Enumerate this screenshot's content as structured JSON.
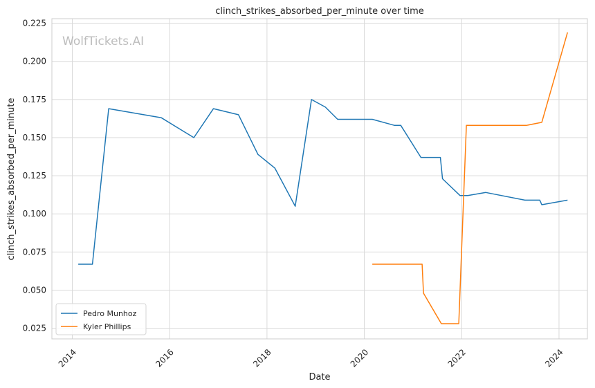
{
  "chart_data": {
    "type": "line",
    "title": "clinch_strikes_absorbed_per_minute over time",
    "xlabel": "Date",
    "ylabel": "clinch_strikes_absorbed_per_minute",
    "watermark": "WolfTickets.AI",
    "xlim": [
      "2013-08-01",
      "2024-08-01"
    ],
    "ylim": [
      0.018,
      0.228
    ],
    "x_ticks": [
      "2014",
      "2016",
      "2018",
      "2020",
      "2022",
      "2024"
    ],
    "y_ticks": [
      "0.025",
      "0.050",
      "0.075",
      "0.100",
      "0.125",
      "0.150",
      "0.175",
      "0.200",
      "0.225"
    ],
    "grid": true,
    "legend_position": "bottom-left",
    "series": [
      {
        "name": "Pedro Munhoz",
        "color": "#1f77b4",
        "points": [
          {
            "x": "2014-02-15",
            "y": 0.067
          },
          {
            "x": "2014-06-01",
            "y": 0.067
          },
          {
            "x": "2014-10-01",
            "y": 0.169
          },
          {
            "x": "2015-11-01",
            "y": 0.163
          },
          {
            "x": "2016-07-01",
            "y": 0.15
          },
          {
            "x": "2016-11-25",
            "y": 0.169
          },
          {
            "x": "2017-06-01",
            "y": 0.165
          },
          {
            "x": "2017-10-25",
            "y": 0.139
          },
          {
            "x": "2018-03-01",
            "y": 0.13
          },
          {
            "x": "2018-08-01",
            "y": 0.105
          },
          {
            "x": "2018-12-01",
            "y": 0.175
          },
          {
            "x": "2019-03-15",
            "y": 0.17
          },
          {
            "x": "2019-06-15",
            "y": 0.162
          },
          {
            "x": "2020-03-01",
            "y": 0.162
          },
          {
            "x": "2020-08-15",
            "y": 0.158
          },
          {
            "x": "2020-10-01",
            "y": 0.158
          },
          {
            "x": "2021-03-01",
            "y": 0.137
          },
          {
            "x": "2021-07-25",
            "y": 0.137
          },
          {
            "x": "2021-08-10",
            "y": 0.123
          },
          {
            "x": "2021-12-20",
            "y": 0.112
          },
          {
            "x": "2022-02-15",
            "y": 0.112
          },
          {
            "x": "2022-07-01",
            "y": 0.114
          },
          {
            "x": "2023-04-20",
            "y": 0.109
          },
          {
            "x": "2023-08-10",
            "y": 0.109
          },
          {
            "x": "2023-08-25",
            "y": 0.106
          },
          {
            "x": "2024-03-05",
            "y": 0.109
          }
        ]
      },
      {
        "name": "Kyler Phillips",
        "color": "#ff7f0e",
        "points": [
          {
            "x": "2020-03-01",
            "y": 0.067
          },
          {
            "x": "2021-03-10",
            "y": 0.067
          },
          {
            "x": "2021-03-20",
            "y": 0.048
          },
          {
            "x": "2021-08-01",
            "y": 0.028
          },
          {
            "x": "2021-12-10",
            "y": 0.028
          },
          {
            "x": "2022-02-05",
            "y": 0.158
          },
          {
            "x": "2023-05-01",
            "y": 0.158
          },
          {
            "x": "2023-08-25",
            "y": 0.16
          },
          {
            "x": "2024-03-05",
            "y": 0.219
          }
        ]
      }
    ]
  }
}
